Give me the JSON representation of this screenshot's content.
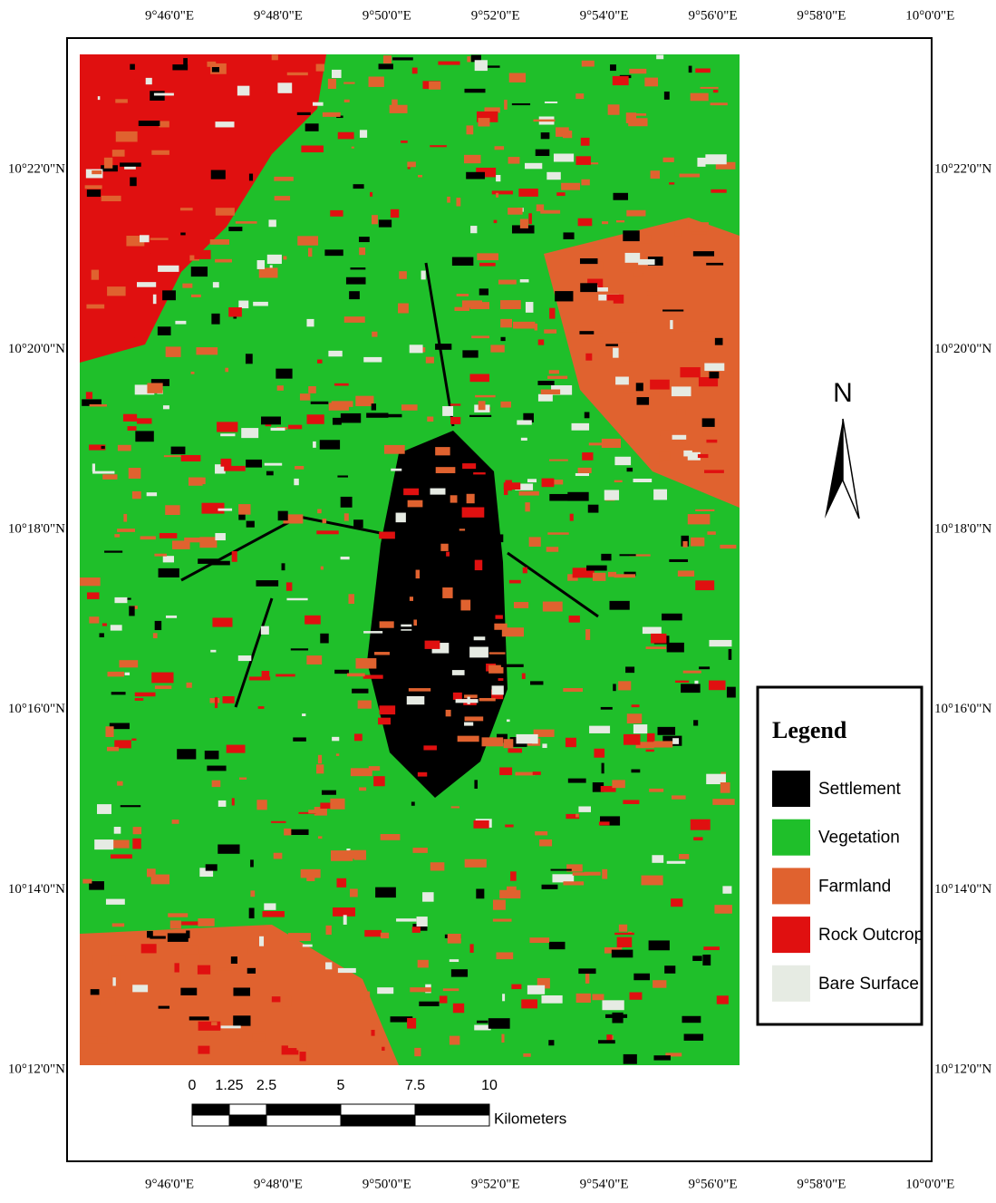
{
  "graticule": {
    "top": [
      "9°46'0\"E",
      "9°48'0\"E",
      "9°50'0\"E",
      "9°52'0\"E",
      "9°54'0\"E",
      "9°56'0\"E",
      "9°58'0\"E",
      "10°0'0\"E"
    ],
    "bottom": [
      "9°46'0\"E",
      "9°48'0\"E",
      "9°50'0\"E",
      "9°52'0\"E",
      "9°54'0\"E",
      "9°56'0\"E",
      "9°58'0\"E",
      "10°0'0\"E"
    ],
    "left": [
      "10°22'0\"N",
      "10°20'0\"N",
      "10°18'0\"N",
      "10°16'0\"N",
      "10°14'0\"N",
      "10°12'0\"N"
    ],
    "right": [
      "10°22'0\"N",
      "10°20'0\"N",
      "10°18'0\"N",
      "10°16'0\"N",
      "10°14'0\"N",
      "10°12'0\"N"
    ]
  },
  "north_arrow": "N",
  "legend": {
    "title": "Legend",
    "items": [
      {
        "label": "Settlement",
        "color": "#000000"
      },
      {
        "label": "Vegetation",
        "color": "#1fbf2a"
      },
      {
        "label": "Farmland",
        "color": "#e0622f"
      },
      {
        "label": "Rock Outcrop",
        "color": "#e01010"
      },
      {
        "label": "Bare Surface",
        "color": "#e6ebe3"
      }
    ]
  },
  "scale_bar": {
    "ticks": [
      0,
      1.25,
      2.5,
      5,
      7.5,
      10
    ],
    "unit": "Kilometers"
  }
}
